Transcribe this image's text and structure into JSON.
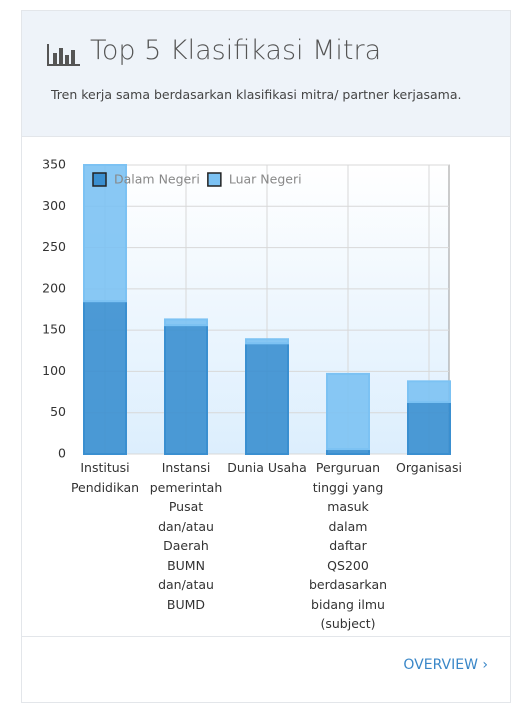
{
  "header": {
    "title": "Top 5 Klasifikasi Mitra",
    "subtitle": "Tren kerja sama berdasarkan klasifikasi mitra/ partner kerjasama."
  },
  "chart_data": {
    "type": "bar",
    "stacked": true,
    "categories": [
      "Institusi Pendidikan",
      "Instansi pemerintah Pusat dan/atau Daerah BUMN dan/atau BUMD",
      "Dunia Usaha",
      "Perguruan tinggi yang masuk dalam daftar QS200 berdasarkan bidang ilmu (subject)",
      "Organisasi"
    ],
    "series": [
      {
        "name": "Dalam Negeri",
        "color": "#3a8fd0",
        "values": [
          185,
          156,
          134,
          6,
          63
        ]
      },
      {
        "name": "Luar Negeri",
        "color": "#7cc2f3",
        "values": [
          165,
          7,
          5,
          91,
          25
        ]
      }
    ],
    "ylim": [
      0,
      350
    ],
    "yticks": [
      0,
      50,
      100,
      150,
      200,
      250,
      300,
      350
    ],
    "grid": true,
    "legend": "top-left"
  },
  "footer": {
    "link": "OVERVIEW ›"
  }
}
